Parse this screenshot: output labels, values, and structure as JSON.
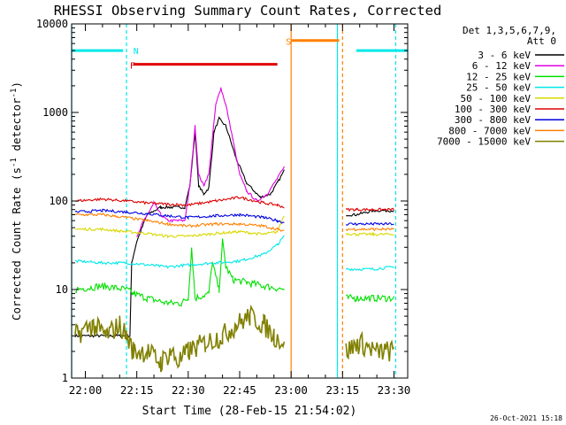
{
  "chart_data": {
    "type": "line",
    "title": "RHESSI Observing Summary Count Rates, Corrected",
    "xlabel": "Start Time (28-Feb-15 21:54:02)",
    "ylabel_main": "Corrected Count Rate (s",
    "ylabel_sup": "-1",
    "ylabel_mid": " detector",
    "ylabel_sup2": "-1",
    "ylabel_end": ")",
    "y_scale": "log",
    "ylim": [
      1,
      10000
    ],
    "xlim_minutes": [
      -4,
      94
    ],
    "x_ticks": [
      {
        "label": "22:00",
        "m": 0
      },
      {
        "label": "22:15",
        "m": 15
      },
      {
        "label": "22:30",
        "m": 30
      },
      {
        "label": "22:45",
        "m": 45
      },
      {
        "label": "23:00",
        "m": 60
      },
      {
        "label": "23:15",
        "m": 75
      },
      {
        "label": "23:30",
        "m": 90
      }
    ],
    "y_ticks": [
      {
        "label": "1",
        "v": 1
      },
      {
        "label": "10",
        "v": 10
      },
      {
        "label": "100",
        "v": 100
      },
      {
        "label": "1000",
        "v": 1000
      },
      {
        "label": "10000",
        "v": 10000
      }
    ],
    "legend_header": [
      "Det 1,3,5,6,7,9,",
      "Att 0"
    ],
    "timestamp": "26-Oct-2021 15:18",
    "data_gaps_minutes": [
      [
        59,
        76
      ]
    ],
    "series": [
      {
        "name": "3 - 6 keV",
        "color": "#000000",
        "points": [
          [
            -3,
            3
          ],
          [
            2,
            3
          ],
          [
            8,
            3
          ],
          [
            13,
            3
          ],
          [
            13.5,
            20
          ],
          [
            15,
            35
          ],
          [
            18,
            70
          ],
          [
            22,
            85
          ],
          [
            25,
            85
          ],
          [
            29,
            85
          ],
          [
            30.5,
            150
          ],
          [
            32,
            600
          ],
          [
            33,
            150
          ],
          [
            34.5,
            120
          ],
          [
            36,
            140
          ],
          [
            37.5,
            600
          ],
          [
            39,
            850
          ],
          [
            41,
            700
          ],
          [
            44,
            300
          ],
          [
            47,
            160
          ],
          [
            51,
            110
          ],
          [
            54,
            120
          ],
          [
            56,
            160
          ],
          [
            58,
            220
          ],
          [
            76,
            70
          ],
          [
            79,
            70
          ],
          [
            84,
            78
          ],
          [
            90,
            78
          ]
        ]
      },
      {
        "name": "6 - 12 keV",
        "color": "#e000e0",
        "points": [
          [
            15,
            38
          ],
          [
            17,
            60
          ],
          [
            19,
            80
          ],
          [
            20,
            95
          ],
          [
            22,
            70
          ],
          [
            24,
            60
          ],
          [
            27,
            60
          ],
          [
            29,
            60
          ],
          [
            30.5,
            150
          ],
          [
            32,
            700
          ],
          [
            33,
            200
          ],
          [
            34.5,
            150
          ],
          [
            36,
            200
          ],
          [
            38,
            1200
          ],
          [
            39.5,
            1900
          ],
          [
            41,
            1200
          ],
          [
            43,
            500
          ],
          [
            45,
            200
          ],
          [
            47,
            130
          ],
          [
            50,
            100
          ],
          [
            53,
            120
          ],
          [
            56,
            180
          ],
          [
            58,
            240
          ]
        ]
      },
      {
        "name": "12 - 25 keV",
        "color": "#00e000",
        "points": [
          [
            -3,
            10
          ],
          [
            5,
            11
          ],
          [
            12,
            10
          ],
          [
            14,
            9
          ],
          [
            18,
            8
          ],
          [
            24,
            7
          ],
          [
            28,
            7
          ],
          [
            30,
            8
          ],
          [
            31,
            30
          ],
          [
            32,
            8
          ],
          [
            36,
            9
          ],
          [
            37,
            20
          ],
          [
            39,
            10
          ],
          [
            40,
            35
          ],
          [
            41,
            18
          ],
          [
            43,
            13
          ],
          [
            47,
            12
          ],
          [
            52,
            11
          ],
          [
            58,
            10
          ],
          [
            76,
            8
          ],
          [
            79,
            8
          ],
          [
            84,
            8
          ],
          [
            90,
            8
          ]
        ]
      },
      {
        "name": "25 - 50 keV",
        "color": "#00e8e8",
        "points": [
          [
            -3,
            21
          ],
          [
            5,
            20
          ],
          [
            12,
            20
          ],
          [
            18,
            19
          ],
          [
            24,
            18
          ],
          [
            30,
            19
          ],
          [
            38,
            20
          ],
          [
            45,
            21
          ],
          [
            52,
            25
          ],
          [
            56,
            32
          ],
          [
            58,
            40
          ],
          [
            76,
            17
          ],
          [
            79,
            17
          ],
          [
            84,
            17
          ],
          [
            90,
            18
          ]
        ]
      },
      {
        "name": "50 - 100 keV",
        "color": "#d8d800",
        "points": [
          [
            -3,
            48
          ],
          [
            5,
            48
          ],
          [
            12,
            45
          ],
          [
            18,
            43
          ],
          [
            24,
            40
          ],
          [
            30,
            40
          ],
          [
            38,
            43
          ],
          [
            45,
            45
          ],
          [
            52,
            42
          ],
          [
            56,
            45
          ],
          [
            58,
            70
          ],
          [
            76,
            43
          ],
          [
            79,
            42
          ],
          [
            84,
            42
          ],
          [
            90,
            42
          ]
        ]
      },
      {
        "name": "100 - 300 keV",
        "color": "#e00000",
        "points": [
          [
            -3,
            100
          ],
          [
            5,
            105
          ],
          [
            12,
            100
          ],
          [
            18,
            95
          ],
          [
            24,
            92
          ],
          [
            30,
            90
          ],
          [
            38,
            100
          ],
          [
            45,
            110
          ],
          [
            52,
            95
          ],
          [
            56,
            90
          ],
          [
            58,
            85
          ],
          [
            76,
            80
          ],
          [
            79,
            80
          ],
          [
            84,
            80
          ],
          [
            90,
            80
          ]
        ]
      },
      {
        "name": "300 - 800 keV",
        "color": "#0000e0",
        "points": [
          [
            -3,
            75
          ],
          [
            5,
            78
          ],
          [
            12,
            75
          ],
          [
            18,
            72
          ],
          [
            24,
            68
          ],
          [
            30,
            65
          ],
          [
            38,
            68
          ],
          [
            45,
            70
          ],
          [
            52,
            65
          ],
          [
            56,
            60
          ],
          [
            58,
            57
          ],
          [
            76,
            55
          ],
          [
            79,
            55
          ],
          [
            84,
            55
          ],
          [
            90,
            55
          ]
        ]
      },
      {
        "name": "800 - 7000 keV",
        "color": "#ff8000",
        "points": [
          [
            -3,
            70
          ],
          [
            5,
            70
          ],
          [
            12,
            65
          ],
          [
            18,
            60
          ],
          [
            24,
            55
          ],
          [
            30,
            52
          ],
          [
            38,
            55
          ],
          [
            45,
            55
          ],
          [
            52,
            52
          ],
          [
            56,
            48
          ],
          [
            58,
            45
          ],
          [
            76,
            48
          ],
          [
            79,
            48
          ],
          [
            84,
            48
          ],
          [
            90,
            48
          ]
        ]
      },
      {
        "name": "7000 - 15000 keV",
        "color": "#808000",
        "points": [
          [
            -3,
            3
          ],
          [
            2,
            4
          ],
          [
            6,
            3
          ],
          [
            10,
            4
          ],
          [
            12,
            3
          ],
          [
            14,
            2
          ],
          [
            18,
            2
          ],
          [
            22,
            1.5
          ],
          [
            25,
            2
          ],
          [
            27,
            1.5
          ],
          [
            30,
            2
          ],
          [
            35,
            2.5
          ],
          [
            40,
            3
          ],
          [
            44,
            4
          ],
          [
            48,
            5
          ],
          [
            52,
            4
          ],
          [
            55,
            3
          ],
          [
            58,
            2.5
          ],
          [
            76,
            2
          ],
          [
            80,
            2.5
          ],
          [
            85,
            2
          ],
          [
            90,
            2
          ]
        ]
      }
    ],
    "annotations": [
      {
        "label": "N",
        "color": "#00e8e8"
      },
      {
        "label": "F",
        "color": "#e00000"
      },
      {
        "label": "S",
        "color": "#ff8000"
      }
    ],
    "flag_bars": [
      {
        "name": "night",
        "color": "#00e8e8",
        "from": -4,
        "to": 11,
        "y": 5000
      },
      {
        "name": "night",
        "color": "#00e8e8",
        "from": 79,
        "to": 94,
        "y": 5000
      },
      {
        "name": "flare",
        "color": "#e00000",
        "from": 14,
        "to": 56,
        "y": 3500
      },
      {
        "name": "saa",
        "color": "#ff8000",
        "from": 60,
        "to": 74,
        "y": 6500
      }
    ],
    "vlines": [
      {
        "m": -4,
        "color": "#00e8e8",
        "style": "solid"
      },
      {
        "m": 12,
        "color": "#00e8e8",
        "style": "dashed"
      },
      {
        "m": 60,
        "color": "#ff8000",
        "style": "solid"
      },
      {
        "m": 73.5,
        "color": "#00e8e8",
        "style": "solid"
      },
      {
        "m": 75,
        "color": "#ff8000",
        "style": "dashed"
      },
      {
        "m": 90.5,
        "color": "#00e8e8",
        "style": "dashed"
      }
    ]
  }
}
